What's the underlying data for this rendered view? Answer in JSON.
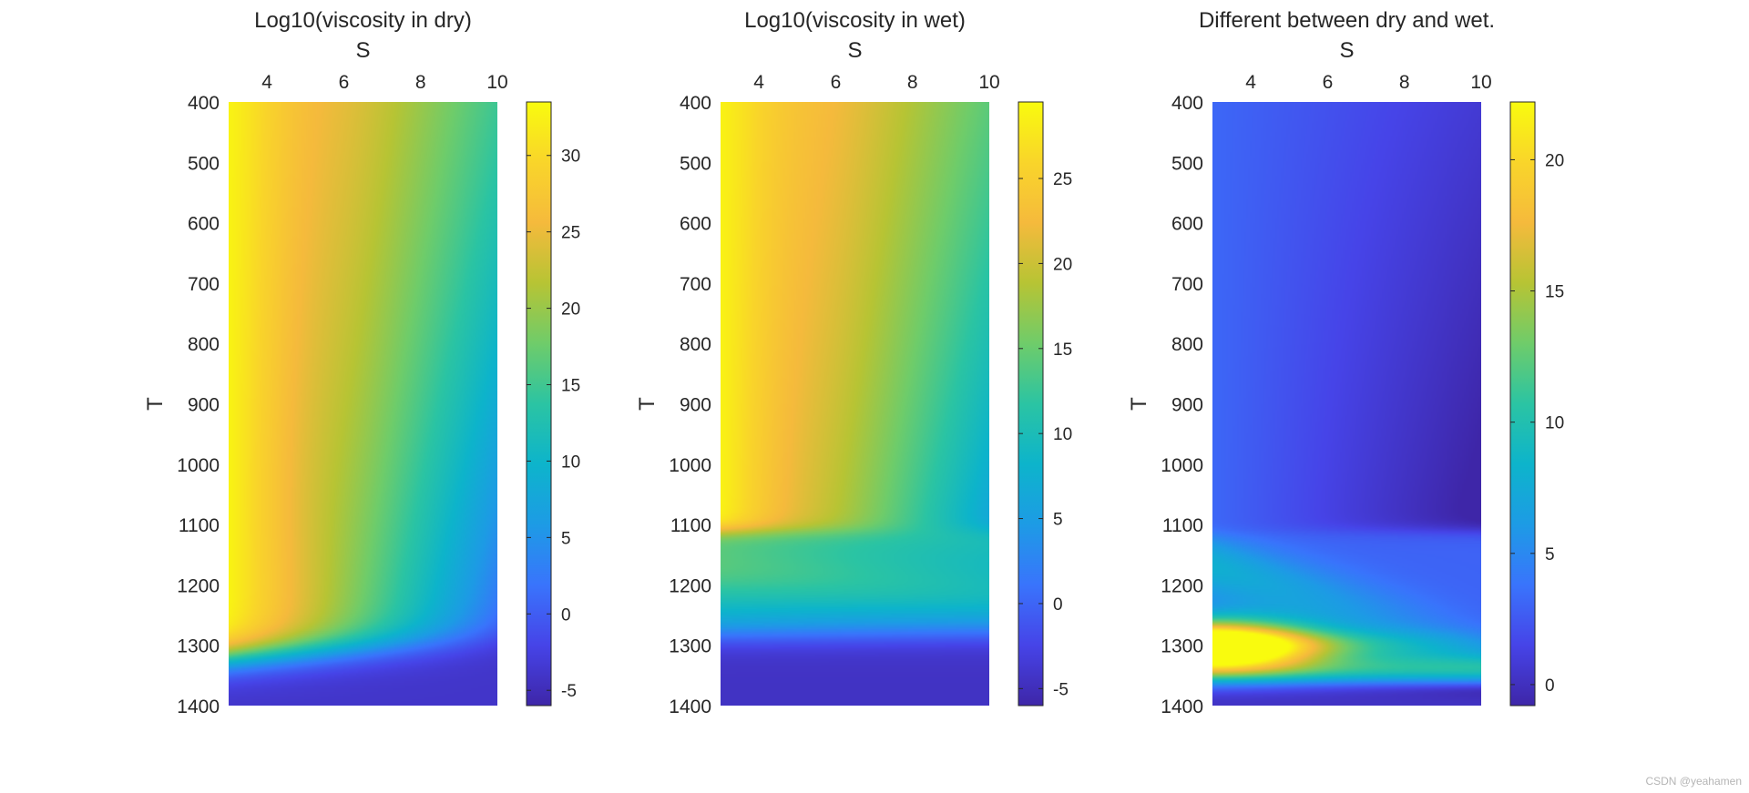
{
  "chart_data": [
    {
      "type": "heatmap",
      "title": "Log10(viscosity in dry)",
      "xlabel": "S",
      "ylabel": "T",
      "xlim": [
        3,
        10
      ],
      "ylim": [
        400,
        1400
      ],
      "x_ticks": [
        4,
        6,
        8,
        10
      ],
      "y_ticks": [
        400,
        500,
        600,
        700,
        800,
        900,
        1000,
        1100,
        1200,
        1300,
        1400
      ],
      "x_axis_location": "top",
      "y_direction": "reversed",
      "colormap": "parula",
      "colorbar": {
        "range": [
          -6,
          33.5
        ],
        "ticks": [
          -5,
          0,
          5,
          10,
          15,
          20,
          25,
          30
        ]
      },
      "field": {
        "kind": "dry",
        "description_points": [
          {
            "S": 3,
            "T": 400,
            "value": 33
          },
          {
            "S": 5,
            "T": 400,
            "value": 28
          },
          {
            "S": 10,
            "T": 400,
            "value": 20
          },
          {
            "S": 3,
            "T": 1200,
            "value": 32
          },
          {
            "S": 10,
            "T": 1200,
            "value": 13
          },
          {
            "S": 3,
            "T": 1300,
            "value": 20
          },
          {
            "S": 10,
            "T": 1300,
            "value": 9
          },
          {
            "S": 3,
            "T": 1380,
            "value": -3
          },
          {
            "S": 10,
            "T": 1400,
            "value": -4
          }
        ]
      }
    },
    {
      "type": "heatmap",
      "title": "Log10(viscosity in wet)",
      "xlabel": "S",
      "ylabel": "T",
      "xlim": [
        3,
        10
      ],
      "ylim": [
        400,
        1400
      ],
      "x_ticks": [
        4,
        6,
        8,
        10
      ],
      "y_ticks": [
        400,
        500,
        600,
        700,
        800,
        900,
        1000,
        1100,
        1200,
        1300,
        1400
      ],
      "x_axis_location": "top",
      "y_direction": "reversed",
      "colormap": "parula",
      "colorbar": {
        "range": [
          -6,
          29.5
        ],
        "ticks": [
          -5,
          0,
          5,
          10,
          15,
          20,
          25
        ]
      },
      "field": {
        "kind": "wet",
        "description_points": [
          {
            "S": 3,
            "T": 400,
            "value": 29
          },
          {
            "S": 10,
            "T": 400,
            "value": 17
          },
          {
            "S": 3,
            "T": 1100,
            "value": 28
          },
          {
            "S": 10,
            "T": 1100,
            "value": 12
          },
          {
            "S": 3,
            "T": 1150,
            "value": 18
          },
          {
            "S": 10,
            "T": 1150,
            "value": 10
          },
          {
            "S": 3,
            "T": 1250,
            "value": 7
          },
          {
            "S": 3,
            "T": 1320,
            "value": -4
          },
          {
            "S": 10,
            "T": 1400,
            "value": -4
          }
        ]
      }
    },
    {
      "type": "heatmap",
      "title": "Different between dry and wet.",
      "xlabel": "S",
      "ylabel": "T",
      "xlim": [
        3,
        10
      ],
      "ylim": [
        400,
        1400
      ],
      "x_ticks": [
        4,
        6,
        8,
        10
      ],
      "y_ticks": [
        400,
        500,
        600,
        700,
        800,
        900,
        1000,
        1100,
        1200,
        1300,
        1400
      ],
      "x_axis_location": "top",
      "y_direction": "reversed",
      "colormap": "parula",
      "colorbar": {
        "range": [
          -0.8,
          22.2
        ],
        "ticks": [
          0,
          5,
          10,
          15,
          20
        ]
      },
      "field": {
        "kind": "difference",
        "description_points": [
          {
            "S": 3,
            "T": 400,
            "value": 4
          },
          {
            "S": 10,
            "T": 1100,
            "value": 1
          },
          {
            "S": 3,
            "T": 1150,
            "value": 10
          },
          {
            "S": 3,
            "T": 1300,
            "value": 21
          },
          {
            "S": 8,
            "T": 1300,
            "value": 10
          },
          {
            "S": 3,
            "T": 1380,
            "value": 1
          },
          {
            "S": 10,
            "T": 1400,
            "value": 0
          }
        ]
      }
    }
  ],
  "watermark": "CSDN @yeahamen"
}
